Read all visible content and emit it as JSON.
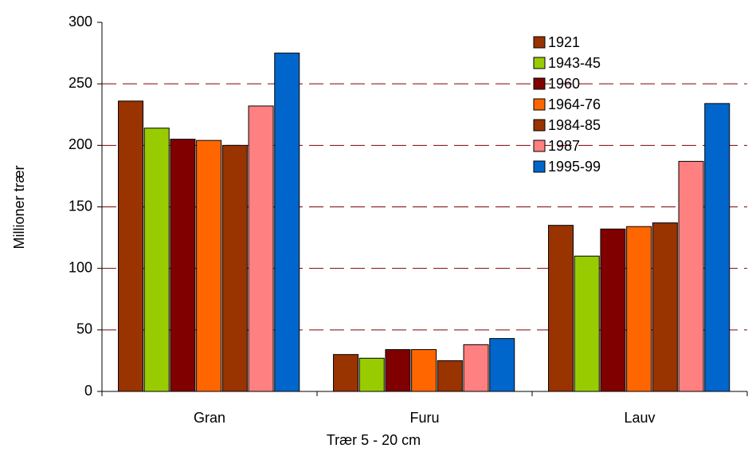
{
  "chart_data": {
    "type": "bar",
    "x_label": "Trær 5 - 20 cm",
    "y_label": "Millioner trær",
    "categories": [
      "Gran",
      "Furu",
      "Lauv"
    ],
    "series": [
      {
        "name": "1921",
        "color": "#993300",
        "values": [
          236,
          30,
          135
        ]
      },
      {
        "name": "1943-45",
        "color": "#99cc00",
        "values": [
          214,
          27,
          110
        ]
      },
      {
        "name": "1960",
        "color": "#800000",
        "values": [
          205,
          34,
          132
        ]
      },
      {
        "name": "1964-76",
        "color": "#ff6600",
        "values": [
          204,
          34,
          134
        ]
      },
      {
        "name": "1984-85",
        "color": "#993300",
        "values": [
          200,
          25,
          137
        ]
      },
      {
        "name": "1987",
        "color": "#ff8080",
        "values": [
          232,
          38,
          187
        ]
      },
      {
        "name": "1995-99",
        "color": "#0066cc",
        "values": [
          275,
          43,
          234
        ]
      }
    ],
    "ylim": [
      0,
      300
    ],
    "yticks": [
      0,
      50,
      100,
      150,
      200,
      250,
      300
    ],
    "grid": true,
    "grid_color": "#800000",
    "legend": "upper right"
  }
}
